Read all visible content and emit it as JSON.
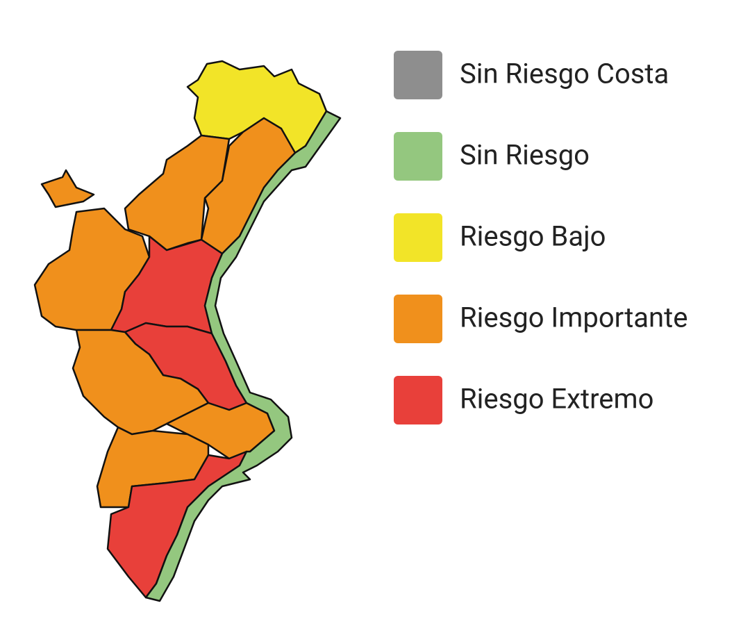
{
  "legend": [
    {
      "label": "Sin Riesgo Costa",
      "color": "#8e8e8e"
    },
    {
      "label": "Sin Riesgo",
      "color": "#94c77f"
    },
    {
      "label": "Riesgo Bajo",
      "color": "#f2e428"
    },
    {
      "label": "Riesgo Importante",
      "color": "#f0901c"
    },
    {
      "label": "Riesgo Extremo",
      "color": "#e8403a"
    }
  ]
}
